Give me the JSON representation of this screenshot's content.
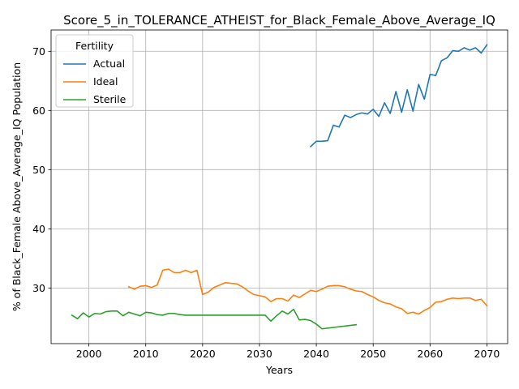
{
  "chart_data": {
    "type": "line",
    "title": "Score_5_in_TOLERANCE_ATHEIST_for_Black_Female_Above_Average_IQ",
    "xlabel": "Years",
    "ylabel": "% of Black_Female Above_Average_IQ Population",
    "xlim": [
      1993.35,
      2073.65
    ],
    "ylim": [
      20.6,
      73.6
    ],
    "x_ticks": [
      2000,
      2010,
      2020,
      2030,
      2040,
      2050,
      2060,
      2070
    ],
    "y_ticks": [
      30,
      40,
      50,
      60,
      70
    ],
    "grid": true,
    "legend": {
      "title": "Fertility",
      "position": "top-left"
    },
    "series": [
      {
        "name": "Actual",
        "color": "#1f77b4",
        "x": [
          2039,
          2040,
          2041,
          2042,
          2043,
          2044,
          2045,
          2046,
          2047,
          2048,
          2049,
          2050,
          2051,
          2052,
          2053,
          2054,
          2055,
          2056,
          2057,
          2058,
          2059,
          2060,
          2061,
          2062,
          2063,
          2064,
          2065,
          2066,
          2067,
          2068,
          2069,
          2070
        ],
        "y": [
          53.9,
          54.8,
          54.8,
          54.9,
          57.5,
          57.2,
          59.2,
          58.8,
          59.3,
          59.6,
          59.4,
          60.2,
          59.0,
          61.3,
          59.5,
          63.2,
          59.7,
          63.5,
          59.9,
          64.4,
          61.9,
          66.1,
          65.9,
          68.4,
          68.9,
          70.1,
          70.0,
          70.6,
          70.2,
          70.6,
          69.7,
          71.1
        ]
      },
      {
        "name": "Ideal",
        "color": "#ff7f0e",
        "x": [
          2007,
          2008,
          2009,
          2010,
          2011,
          2012,
          2013,
          2014,
          2015,
          2016,
          2017,
          2018,
          2019,
          2020,
          2021,
          2022,
          2023,
          2024,
          2025,
          2026,
          2027,
          2028,
          2029,
          2030,
          2031,
          2032,
          2033,
          2034,
          2035,
          2036,
          2037,
          2038,
          2039,
          2040,
          2041,
          2042,
          2043,
          2044,
          2045,
          2046,
          2047,
          2048,
          2049,
          2050,
          2051,
          2052,
          2053,
          2054,
          2055,
          2056,
          2057,
          2058,
          2059,
          2060,
          2061,
          2062,
          2063,
          2064,
          2065,
          2066,
          2067,
          2068,
          2069,
          2070
        ],
        "y": [
          30.2,
          29.8,
          30.3,
          30.4,
          30.1,
          30.5,
          33.0,
          33.2,
          32.6,
          32.6,
          33.0,
          32.6,
          33.0,
          28.9,
          29.3,
          30.1,
          30.5,
          30.9,
          30.8,
          30.7,
          30.2,
          29.5,
          28.9,
          28.7,
          28.5,
          27.7,
          28.2,
          28.2,
          27.8,
          28.8,
          28.4,
          29.0,
          29.6,
          29.4,
          29.8,
          30.3,
          30.4,
          30.4,
          30.2,
          29.8,
          29.5,
          29.4,
          28.9,
          28.5,
          27.9,
          27.5,
          27.3,
          26.8,
          26.5,
          25.7,
          25.9,
          25.6,
          26.2,
          26.7,
          27.6,
          27.7,
          28.1,
          28.3,
          28.2,
          28.3,
          28.3,
          27.9,
          28.1,
          27.0
        ]
      },
      {
        "name": "Sterile",
        "color": "#2ca02c",
        "x": [
          1997,
          1998,
          1999,
          2000,
          2001,
          2002,
          2003,
          2004,
          2005,
          2006,
          2007,
          2008,
          2009,
          2010,
          2011,
          2012,
          2013,
          2014,
          2015,
          2016,
          2017,
          2018,
          2019,
          2020,
          2031,
          2032,
          2033,
          2034,
          2035,
          2036,
          2037,
          2038,
          2039,
          2040,
          2041,
          2047
        ],
        "y": [
          25.4,
          24.8,
          25.8,
          25.1,
          25.7,
          25.6,
          26.0,
          26.1,
          26.1,
          25.3,
          25.9,
          25.6,
          25.3,
          25.9,
          25.8,
          25.5,
          25.4,
          25.7,
          25.7,
          25.5,
          25.4,
          25.4,
          25.4,
          25.4,
          25.4,
          24.4,
          25.3,
          26.1,
          25.6,
          26.4,
          24.6,
          24.7,
          24.5,
          23.9,
          23.1,
          23.8
        ]
      }
    ]
  }
}
